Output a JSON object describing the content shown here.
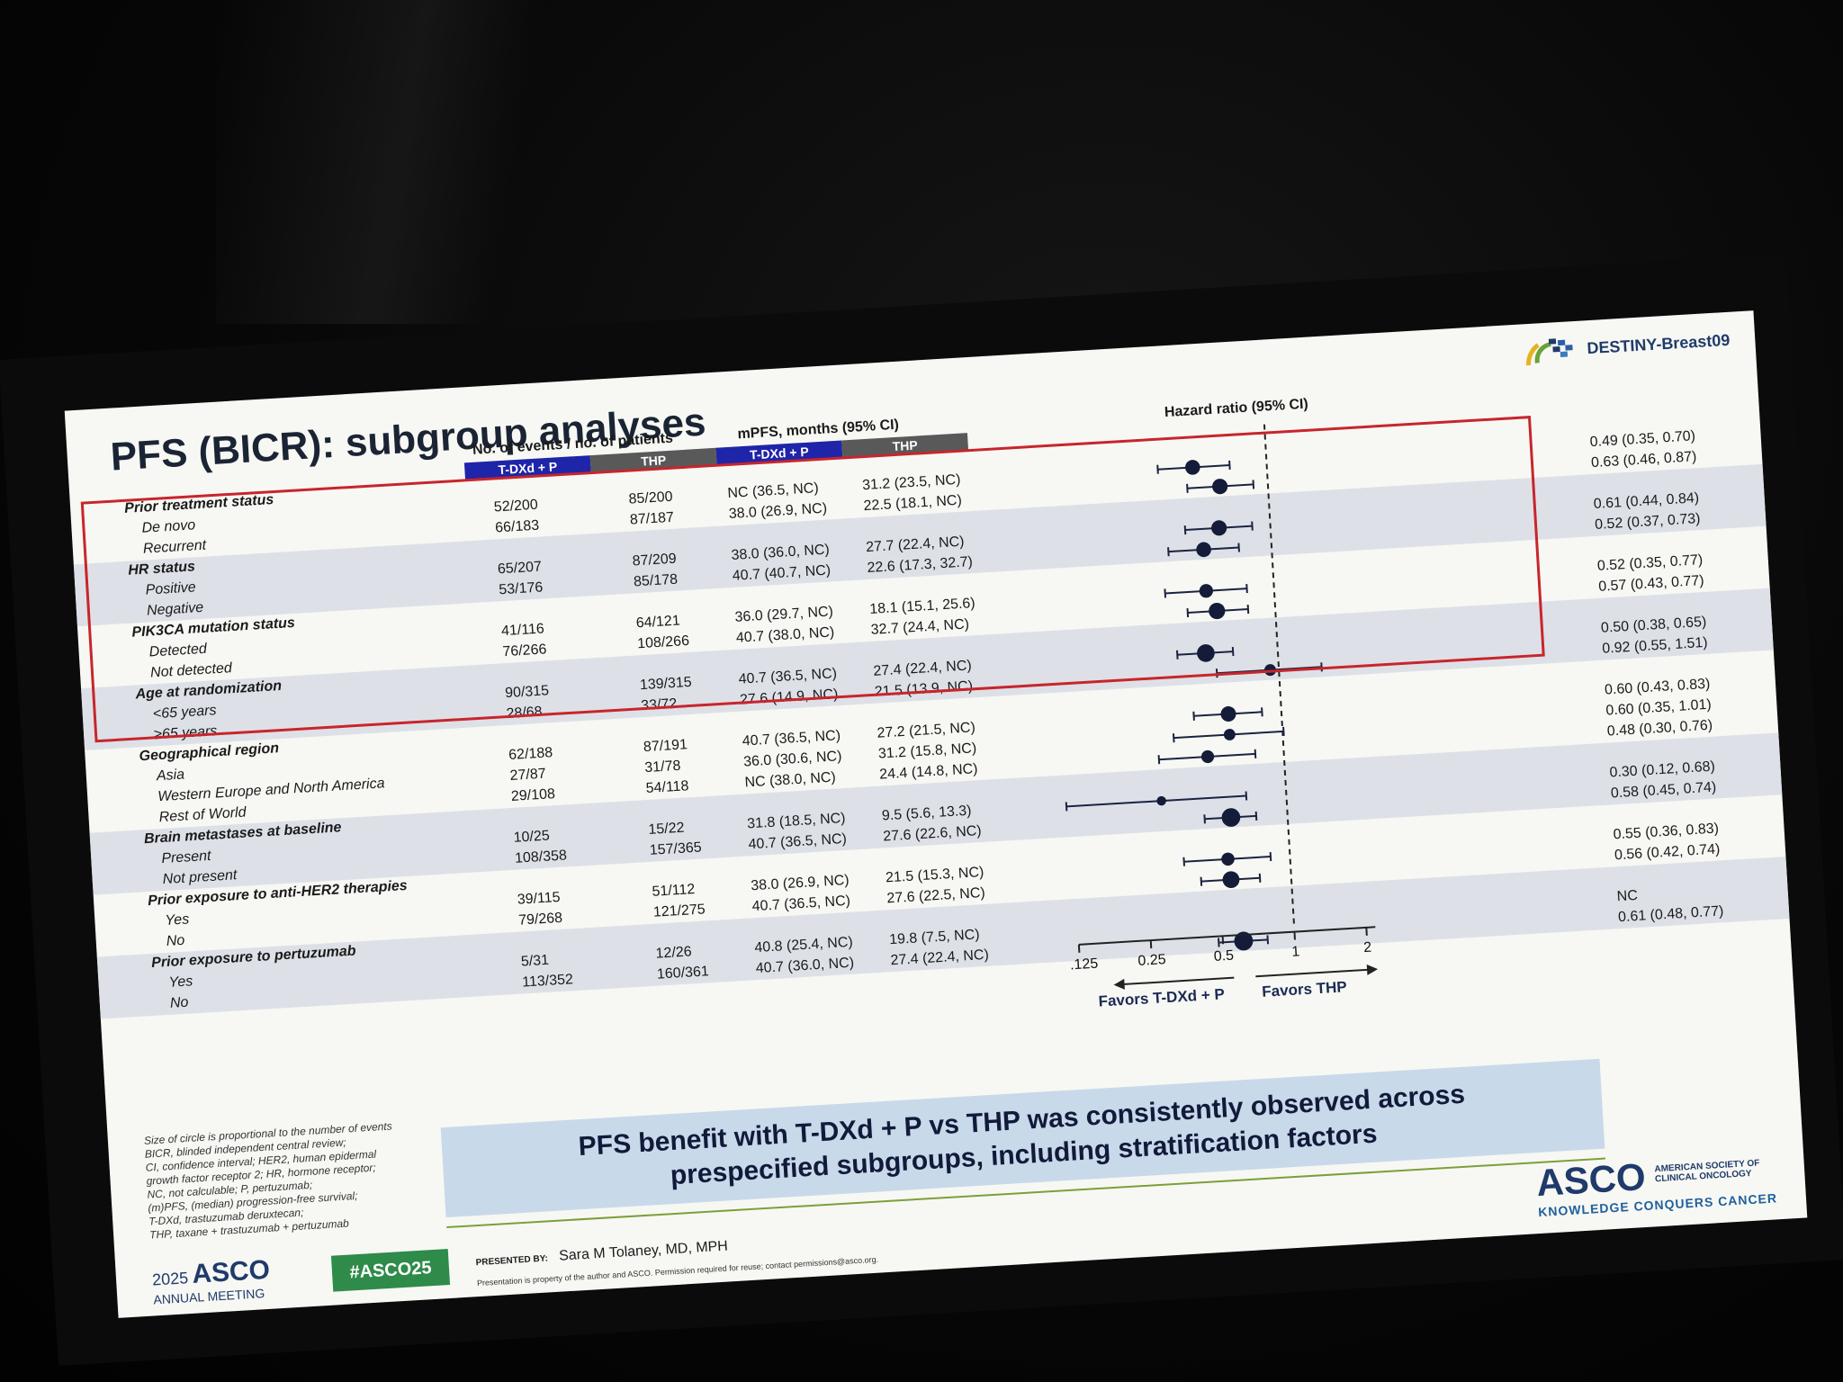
{
  "slide": {
    "title": "PFS (BICR): subgroup analyses",
    "brand": "DESTINY-Breast09",
    "col_events_header": "No. of events / no. of patients",
    "col_mpfs_header": "mPFS, months (95% CI)",
    "col_hr_header": "Hazard ratio (95% CI)",
    "arm_tdxd": "T-DXd + P",
    "arm_thp": "THP",
    "axis_ticks": [
      "0.125",
      "0.25",
      "0.5",
      "1",
      "2"
    ],
    "favors_left": "Favors T-DXd + P",
    "favors_right": "Favors THP",
    "footnote": [
      "Size of circle is proportional to the number of events",
      "BICR, blinded independent central review;",
      "CI, confidence interval; HER2, human epidermal",
      "growth factor receptor 2; HR, hormone receptor;",
      "NC, not calculable; P, pertuzumab;",
      "(m)PFS, (median) progression-free survival;",
      "T-DXd, trastuzumab deruxtecan;",
      "THP, taxane + trastuzumab + pertuzumab"
    ],
    "conclusion_line1": "PFS benefit with T-DXd + P vs THP was consistently observed across",
    "conclusion_line2": "prespecified subgroups, including stratification factors",
    "meeting_year": "2025",
    "meeting_name": "ASCO",
    "meeting_sub": "ANNUAL MEETING",
    "hashtag": "#ASCO25",
    "presented_by_label": "PRESENTED BY:",
    "presenter": "Sara M Tolaney, MD, MPH",
    "disclaimer": "Presentation is property of the author and ASCO. Permission required for reuse; contact permissions@asco.org.",
    "asco_big": "ASCO",
    "asco_small_1": "AMERICAN SOCIETY OF",
    "asco_small_2": "CLINICAL ONCOLOGY",
    "asco_tagline": "KNOWLEDGE CONQUERS CANCER"
  },
  "chart_data": {
    "type": "forest",
    "x_scale": "log2",
    "xlim": [
      0.125,
      2
    ],
    "reference_line": 1,
    "rows": [
      {
        "label": "Prior treatment status",
        "header": true
      },
      {
        "label": "De novo",
        "ev_tdxd": "52/200",
        "ev_thp": "85/200",
        "mpfs_tdxd": "NC (36.5, NC)",
        "mpfs_thp": "31.2 (23.5, NC)",
        "hr_text": "0.49 (0.35, 0.70)",
        "hr": 0.49,
        "lo": 0.35,
        "hi": 0.7
      },
      {
        "label": "Recurrent",
        "ev_tdxd": "66/183",
        "ev_thp": "87/187",
        "mpfs_tdxd": "38.0 (26.9, NC)",
        "mpfs_thp": "22.5 (18.1, NC)",
        "hr_text": "0.63 (0.46, 0.87)",
        "hr": 0.63,
        "lo": 0.46,
        "hi": 0.87
      },
      {
        "label": "HR status",
        "header": true
      },
      {
        "label": "Positive",
        "ev_tdxd": "65/207",
        "ev_thp": "87/209",
        "mpfs_tdxd": "38.0 (36.0, NC)",
        "mpfs_thp": "27.7 (22.4, NC)",
        "hr_text": "0.61 (0.44, 0.84)",
        "hr": 0.61,
        "lo": 0.44,
        "hi": 0.84
      },
      {
        "label": "Negative",
        "ev_tdxd": "53/176",
        "ev_thp": "85/178",
        "mpfs_tdxd": "40.7 (40.7, NC)",
        "mpfs_thp": "22.6 (17.3, 32.7)",
        "hr_text": "0.52 (0.37, 0.73)",
        "hr": 0.52,
        "lo": 0.37,
        "hi": 0.73
      },
      {
        "label": "PIK3CA mutation status",
        "header": true
      },
      {
        "label": "Detected",
        "ev_tdxd": "41/116",
        "ev_thp": "64/121",
        "mpfs_tdxd": "36.0 (29.7, NC)",
        "mpfs_thp": "18.1 (15.1, 25.6)",
        "hr_text": "0.52 (0.35, 0.77)",
        "hr": 0.52,
        "lo": 0.35,
        "hi": 0.77
      },
      {
        "label": "Not detected",
        "ev_tdxd": "76/266",
        "ev_thp": "108/266",
        "mpfs_tdxd": "40.7 (38.0, NC)",
        "mpfs_thp": "32.7 (24.4, NC)",
        "hr_text": "0.57 (0.43, 0.77)",
        "hr": 0.57,
        "lo": 0.43,
        "hi": 0.77
      },
      {
        "label": "Age at randomization",
        "header": true
      },
      {
        "label": "<65 years",
        "ev_tdxd": "90/315",
        "ev_thp": "139/315",
        "mpfs_tdxd": "40.7 (36.5, NC)",
        "mpfs_thp": "27.4 (22.4, NC)",
        "hr_text": "0.50 (0.38, 0.65)",
        "hr": 0.5,
        "lo": 0.38,
        "hi": 0.65
      },
      {
        "label": "≥65 years",
        "ev_tdxd": "28/68",
        "ev_thp": "33/72",
        "mpfs_tdxd": "27.6 (14.9, NC)",
        "mpfs_thp": "21.5 (13.9, NC)",
        "hr_text": "0.92 (0.55, 1.51)",
        "hr": 0.92,
        "lo": 0.55,
        "hi": 1.51
      },
      {
        "label": "Geographical region",
        "header": true
      },
      {
        "label": "Asia",
        "ev_tdxd": "62/188",
        "ev_thp": "87/191",
        "mpfs_tdxd": "40.7 (36.5, NC)",
        "mpfs_thp": "27.2 (21.5, NC)",
        "hr_text": "0.60 (0.43, 0.83)",
        "hr": 0.6,
        "lo": 0.43,
        "hi": 0.83
      },
      {
        "label": "Western Europe and North America",
        "ev_tdxd": "27/87",
        "ev_thp": "31/78",
        "mpfs_tdxd": "36.0 (30.6, NC)",
        "mpfs_thp": "31.2 (15.8, NC)",
        "hr_text": "0.60 (0.35, 1.01)",
        "hr": 0.6,
        "lo": 0.35,
        "hi": 1.01
      },
      {
        "label": "Rest of World",
        "ev_tdxd": "29/108",
        "ev_thp": "54/118",
        "mpfs_tdxd": "NC (38.0, NC)",
        "mpfs_thp": "24.4 (14.8, NC)",
        "hr_text": "0.48 (0.30, 0.76)",
        "hr": 0.48,
        "lo": 0.3,
        "hi": 0.76
      },
      {
        "label": "Brain metastases at baseline",
        "header": true
      },
      {
        "label": "Present",
        "ev_tdxd": "10/25",
        "ev_thp": "15/22",
        "mpfs_tdxd": "31.8 (18.5, NC)",
        "mpfs_thp": "9.5 (5.6, 13.3)",
        "hr_text": "0.30 (0.12, 0.68)",
        "hr": 0.3,
        "lo": 0.12,
        "hi": 0.68
      },
      {
        "label": "Not present",
        "ev_tdxd": "108/358",
        "ev_thp": "157/365",
        "mpfs_tdxd": "40.7 (36.5, NC)",
        "mpfs_thp": "27.6 (22.6, NC)",
        "hr_text": "0.58 (0.45, 0.74)",
        "hr": 0.58,
        "lo": 0.45,
        "hi": 0.74
      },
      {
        "label": "Prior exposure to anti-HER2 therapies",
        "header": true
      },
      {
        "label": "Yes",
        "ev_tdxd": "39/115",
        "ev_thp": "51/112",
        "mpfs_tdxd": "38.0 (26.9, NC)",
        "mpfs_thp": "21.5 (15.3, NC)",
        "hr_text": "0.55 (0.36, 0.83)",
        "hr": 0.55,
        "lo": 0.36,
        "hi": 0.83
      },
      {
        "label": "No",
        "ev_tdxd": "79/268",
        "ev_thp": "121/275",
        "mpfs_tdxd": "40.7 (36.5, NC)",
        "mpfs_thp": "27.6 (22.5, NC)",
        "hr_text": "0.56 (0.42, 0.74)",
        "hr": 0.56,
        "lo": 0.42,
        "hi": 0.74
      },
      {
        "label": "Prior exposure to pertuzumab",
        "header": true
      },
      {
        "label": "Yes",
        "ev_tdxd": "5/31",
        "ev_thp": "12/26",
        "mpfs_tdxd": "40.8 (25.4, NC)",
        "mpfs_thp": "19.8 (7.5, NC)",
        "hr_text": "NC",
        "hr": null,
        "lo": null,
        "hi": null
      },
      {
        "label": "No",
        "ev_tdxd": "113/352",
        "ev_thp": "160/361",
        "mpfs_tdxd": "40.7 (36.0, NC)",
        "mpfs_thp": "27.4 (22.4, NC)",
        "hr_text": "0.61 (0.48, 0.77)",
        "hr": 0.61,
        "lo": 0.48,
        "hi": 0.77
      }
    ]
  },
  "colors": {
    "accent_blue": "#1f25a8",
    "arm_grey": "#595959",
    "highlight_red": "#c8252c",
    "conclusion_bg": "#c8d9ea",
    "hashtag_green": "#2e8b4a"
  }
}
